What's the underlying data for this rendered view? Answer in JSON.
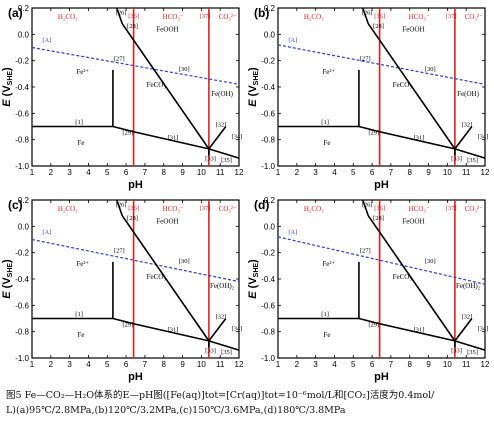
{
  "caption": {
    "line1": "图5 Fe—CO₂—H₂O体系的E—pH图([Fe(aq)]tot=[Cr(aq)]tot=10⁻⁶mol/L和[CO₂]活度为0.4mol/",
    "line2": "L)(a)95℃/2.8MPa,(b)120℃/3.2MPa,(c)150℃/3.6MPa,(d)180℃/3.8MPa"
  },
  "axis_text": {
    "xlabel": "pH",
    "ylabel_main": "E",
    "ylabel_paren": "(V",
    "ylabel_sub": "SHE",
    "ylabel_close": ")",
    "x_ticks": [
      "1",
      "2",
      "3",
      "4",
      "5",
      "6",
      "7",
      "8",
      "9",
      "10",
      "11",
      "12"
    ],
    "y_ticks": [
      "-1.0",
      "-0.8",
      "-0.6",
      "-0.4",
      "-0.2",
      "0.0",
      "0.2"
    ]
  },
  "region_labels": {
    "h2co3": "H₂CO₃",
    "hco3": "HCO₃⁻",
    "co3": "CO₃²⁻",
    "feooh": "FeOOH",
    "fe2": "Fe²⁺",
    "feco3": "FeCO₃",
    "fe": "Fe",
    "feoh2": "Fe(OH)₂",
    "feoh_short": "Fe(OH)"
  },
  "line_markers": {
    "m26": "[26]",
    "m28": "[28]",
    "m36": "[36]",
    "m37": "[37]",
    "mA": "[A]",
    "m27": "[27]",
    "m30": "[30]",
    "m1": "[1]",
    "m29": "[29]",
    "m31": "[31]",
    "m32": "[32]",
    "m33": "[33]",
    "m34": "[34]",
    "m35": "[35]"
  },
  "colors": {
    "frame": "#000000",
    "phase_boundary": "#000000",
    "carbonate_boundary": "#e02020",
    "water_line": "#2a3cc8"
  },
  "chart_data": [
    {
      "panel": "(a)",
      "type": "line",
      "xlabel": "pH",
      "ylabel": "E (VSHE)",
      "xlim": [
        1,
        12
      ],
      "ylim": [
        -1.0,
        0.2
      ],
      "grid": false,
      "carbonate_boundaries_pH": [
        6.4,
        10.4
      ],
      "water_line": {
        "x": [
          1,
          12
        ],
        "y": [
          -0.1,
          -0.38
        ]
      },
      "segments": [
        {
          "label": "[1]",
          "x": [
            1,
            5.3
          ],
          "y": [
            -0.7,
            -0.7
          ]
        },
        {
          "label": "[27]",
          "x": [
            5.3,
            5.3
          ],
          "y": [
            -0.7,
            -0.27
          ]
        },
        {
          "label": "[29]",
          "x": [
            5.3,
            6.4
          ],
          "y": [
            -0.7,
            -0.74
          ]
        },
        {
          "label": "[31]",
          "x": [
            6.4,
            10.4
          ],
          "y": [
            -0.74,
            -0.87
          ]
        },
        {
          "label": "[33]",
          "x": [
            10.4,
            10.4
          ],
          "y": [
            -0.87,
            -0.92
          ]
        },
        {
          "label": "[35]",
          "x": [
            10.4,
            12
          ],
          "y": [
            -0.87,
            -0.94
          ]
        },
        {
          "label": "[28]",
          "x": [
            5.8,
            10.4
          ],
          "y": [
            0.08,
            -0.87
          ]
        },
        {
          "label": "[26]",
          "x": [
            5.5,
            5.8
          ],
          "y": [
            0.2,
            0.08
          ]
        },
        {
          "label": "[32]",
          "x": [
            10.4,
            11.3
          ],
          "y": [
            -0.87,
            -0.7
          ]
        }
      ]
    },
    {
      "panel": "(b)",
      "type": "line",
      "xlabel": "pH",
      "ylabel": "E (VSHE)",
      "xlim": [
        1,
        12
      ],
      "ylim": [
        -1.0,
        0.2
      ],
      "grid": false,
      "carbonate_boundaries_pH": [
        6.4,
        10.4
      ],
      "water_line": {
        "x": [
          1,
          12
        ],
        "y": [
          -0.08,
          -0.38
        ]
      },
      "segments": [
        {
          "label": "[1]",
          "x": [
            1,
            5.3
          ],
          "y": [
            -0.7,
            -0.7
          ]
        },
        {
          "label": "[27]",
          "x": [
            5.3,
            5.3
          ],
          "y": [
            -0.7,
            -0.27
          ]
        },
        {
          "label": "[29]",
          "x": [
            5.3,
            6.4
          ],
          "y": [
            -0.7,
            -0.74
          ]
        },
        {
          "label": "[31]",
          "x": [
            6.4,
            10.4
          ],
          "y": [
            -0.74,
            -0.87
          ]
        },
        {
          "label": "[33]",
          "x": [
            10.4,
            10.4
          ],
          "y": [
            -0.87,
            -0.92
          ]
        },
        {
          "label": "[35]",
          "x": [
            10.4,
            12
          ],
          "y": [
            -0.87,
            -0.94
          ]
        },
        {
          "label": "[28]",
          "x": [
            5.8,
            10.4
          ],
          "y": [
            0.08,
            -0.87
          ]
        },
        {
          "label": "[26]",
          "x": [
            5.5,
            5.8
          ],
          "y": [
            0.2,
            0.08
          ]
        },
        {
          "label": "[32]",
          "x": [
            10.4,
            11.3
          ],
          "y": [
            -0.87,
            -0.7
          ]
        }
      ]
    },
    {
      "panel": "(c)",
      "type": "line",
      "xlabel": "pH",
      "ylabel": "E (VSHE)",
      "xlim": [
        1,
        12
      ],
      "ylim": [
        -1.0,
        0.2
      ],
      "grid": false,
      "carbonate_boundaries_pH": [
        6.4,
        10.4
      ],
      "water_line": {
        "x": [
          1,
          12
        ],
        "y": [
          -0.1,
          -0.42
        ]
      },
      "segments": [
        {
          "label": "[1]",
          "x": [
            1,
            5.3
          ],
          "y": [
            -0.7,
            -0.7
          ]
        },
        {
          "label": "[27]",
          "x": [
            5.3,
            5.3
          ],
          "y": [
            -0.7,
            -0.27
          ]
        },
        {
          "label": "[29]",
          "x": [
            5.3,
            6.4
          ],
          "y": [
            -0.7,
            -0.74
          ]
        },
        {
          "label": "[31]",
          "x": [
            6.4,
            10.4
          ],
          "y": [
            -0.74,
            -0.87
          ]
        },
        {
          "label": "[33]",
          "x": [
            10.4,
            10.4
          ],
          "y": [
            -0.87,
            -0.92
          ]
        },
        {
          "label": "[35]",
          "x": [
            10.4,
            12
          ],
          "y": [
            -0.87,
            -0.94
          ]
        },
        {
          "label": "[28]",
          "x": [
            5.8,
            10.4
          ],
          "y": [
            0.08,
            -0.87
          ]
        },
        {
          "label": "[26]",
          "x": [
            5.5,
            5.8
          ],
          "y": [
            0.2,
            0.08
          ]
        },
        {
          "label": "[32]",
          "x": [
            10.4,
            11.3
          ],
          "y": [
            -0.87,
            -0.7
          ]
        }
      ]
    },
    {
      "panel": "(d)",
      "type": "line",
      "xlabel": "pH",
      "ylabel": "E (VSHE)",
      "xlim": [
        1,
        12
      ],
      "ylim": [
        -1.0,
        0.2
      ],
      "grid": false,
      "carbonate_boundaries_pH": [
        6.4,
        10.4
      ],
      "water_line": {
        "x": [
          1,
          12
        ],
        "y": [
          -0.08,
          -0.44
        ]
      },
      "segments": [
        {
          "label": "[1]",
          "x": [
            1,
            5.3
          ],
          "y": [
            -0.7,
            -0.7
          ]
        },
        {
          "label": "[27]",
          "x": [
            5.3,
            5.3
          ],
          "y": [
            -0.7,
            -0.27
          ]
        },
        {
          "label": "[29]",
          "x": [
            5.3,
            6.4
          ],
          "y": [
            -0.7,
            -0.74
          ]
        },
        {
          "label": "[31]",
          "x": [
            6.4,
            10.4
          ],
          "y": [
            -0.74,
            -0.87
          ]
        },
        {
          "label": "[33]",
          "x": [
            10.4,
            10.4
          ],
          "y": [
            -0.87,
            -0.92
          ]
        },
        {
          "label": "[35]",
          "x": [
            10.4,
            12
          ],
          "y": [
            -0.87,
            -0.94
          ]
        },
        {
          "label": "[28]",
          "x": [
            5.8,
            10.4
          ],
          "y": [
            0.08,
            -0.87
          ]
        },
        {
          "label": "[26]",
          "x": [
            5.5,
            5.8
          ],
          "y": [
            0.2,
            0.08
          ]
        },
        {
          "label": "[32]",
          "x": [
            10.4,
            11.3
          ],
          "y": [
            -0.87,
            -0.7
          ]
        }
      ]
    }
  ]
}
